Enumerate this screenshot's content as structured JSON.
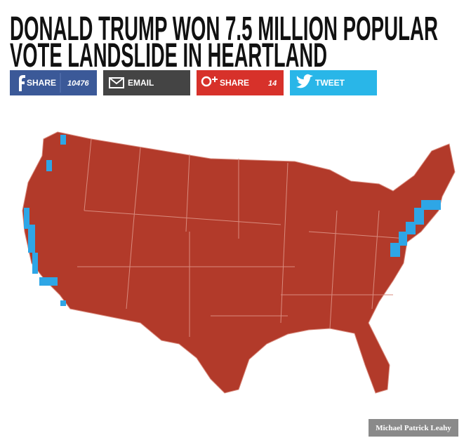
{
  "header": {
    "title_lines": [
      "DONALD TRUMP WON 7.5 MILLION POPULAR",
      "VOTE LANDSLIDE IN HEARTLAND"
    ]
  },
  "share_buttons": [
    {
      "label": "SHARE",
      "count": 10476
    },
    {
      "label": "EMAIL"
    },
    {
      "label": "SHARE",
      "count": 14
    },
    {
      "label": "TWEET"
    }
  ],
  "image": {
    "credit": "Michael Patrick Leahy"
  }
}
